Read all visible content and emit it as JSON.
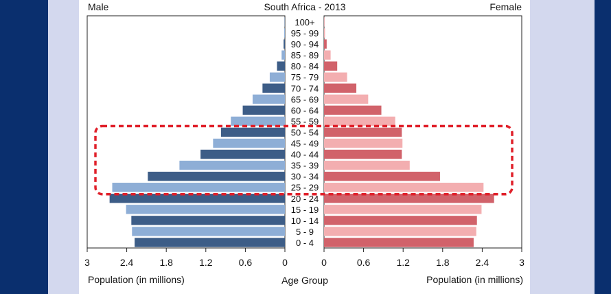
{
  "header": {
    "left": "Male",
    "title": "South Africa - 2013",
    "right": "Female"
  },
  "footer": {
    "left": "Population (in millions)",
    "center": "Age Group",
    "right": "Population (in millions)"
  },
  "colors": {
    "male_dark": "#3d5d87",
    "male_light": "#8eaed6",
    "female_dark": "#d1626a",
    "female_light": "#f3aeb0",
    "highlight": "#e0202a",
    "background_blue": "#0a2f6e",
    "background_lilac": "#d3d8ee"
  },
  "chart_data": {
    "type": "bar",
    "title": "South Africa - 2013",
    "categories": [
      "0 - 4",
      "5 - 9",
      "10 - 14",
      "15 - 19",
      "20 - 24",
      "25 - 29",
      "30 - 34",
      "35 - 39",
      "40 - 44",
      "45 - 49",
      "50 - 54",
      "55 - 59",
      "60 - 64",
      "65 - 69",
      "70 - 74",
      "75 - 79",
      "80 - 84",
      "85 - 89",
      "90 - 94",
      "95 - 99",
      "100+"
    ],
    "series": [
      {
        "name": "Male",
        "values": [
          2.28,
          2.32,
          2.33,
          2.41,
          2.66,
          2.62,
          2.08,
          1.6,
          1.28,
          1.09,
          0.97,
          0.82,
          0.64,
          0.49,
          0.34,
          0.23,
          0.12,
          0.05,
          0.02,
          0.01,
          0.005
        ]
      },
      {
        "name": "Female",
        "values": [
          2.27,
          2.31,
          2.32,
          2.39,
          2.58,
          2.42,
          1.76,
          1.3,
          1.18,
          1.19,
          1.18,
          1.08,
          0.87,
          0.67,
          0.49,
          0.35,
          0.2,
          0.1,
          0.04,
          0.015,
          0.005
        ]
      }
    ],
    "x_ticks_male": [
      "3",
      "2.4",
      "1.8",
      "1.2",
      "0.6",
      "0"
    ],
    "x_ticks_female": [
      "0",
      "0.6",
      "1.2",
      "1.8",
      "2.4",
      "3"
    ],
    "xlim": [
      0,
      3
    ],
    "xlabel_left": "Population (in millions)",
    "xlabel_center": "Age Group",
    "xlabel_right": "Population (in millions)",
    "highlight_categories": [
      "25 - 29",
      "30 - 34",
      "35 - 39",
      "40 - 44",
      "45 - 49",
      "50 - 54"
    ],
    "grid": false
  }
}
